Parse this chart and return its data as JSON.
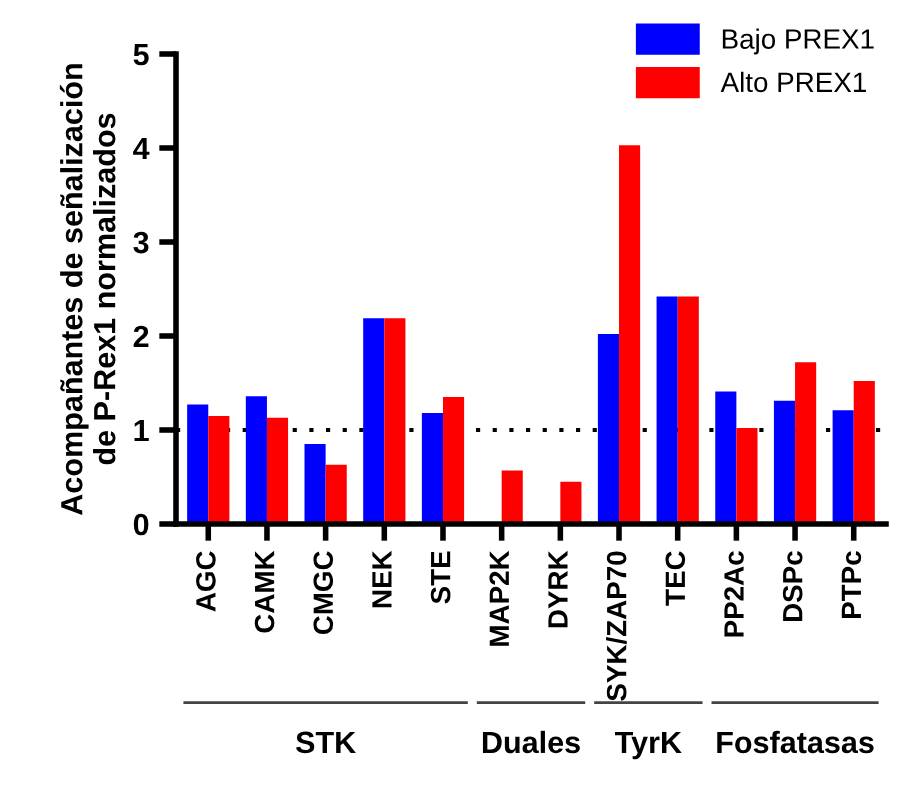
{
  "chart_data": {
    "type": "bar",
    "ylabel": "Acompañantes de señalización\nde P-Rex1 normalizados",
    "categories": [
      "AGC",
      "CAMK",
      "CMGC",
      "NEK",
      "STE",
      "MAP2K",
      "DYRK",
      "SYK/ZAP70",
      "TEC",
      "PP2Ac",
      "DSPc",
      "PTPc"
    ],
    "series": [
      {
        "name": "Bajo PREX1",
        "color": "#0000ff",
        "values": [
          1.27,
          1.36,
          0.85,
          2.19,
          1.18,
          null,
          null,
          2.02,
          2.42,
          1.41,
          1.31,
          1.21
        ]
      },
      {
        "name": "Alto PREX1",
        "color": "#ff0000",
        "values": [
          1.15,
          1.13,
          0.63,
          2.19,
          1.35,
          0.57,
          0.45,
          4.03,
          2.42,
          1.02,
          1.72,
          1.52
        ]
      }
    ],
    "ylim": [
      0,
      5
    ],
    "yticks": [
      0,
      1,
      2,
      3,
      4,
      5
    ],
    "ref_lines": [
      {
        "axis": "y",
        "value": 1,
        "color": "#000000",
        "line_style": "dotted"
      }
    ],
    "annotations": [
      "STK",
      "Duales",
      "TyrK",
      "Fosfatasas"
    ],
    "legend": "top right",
    "grid": false
  }
}
